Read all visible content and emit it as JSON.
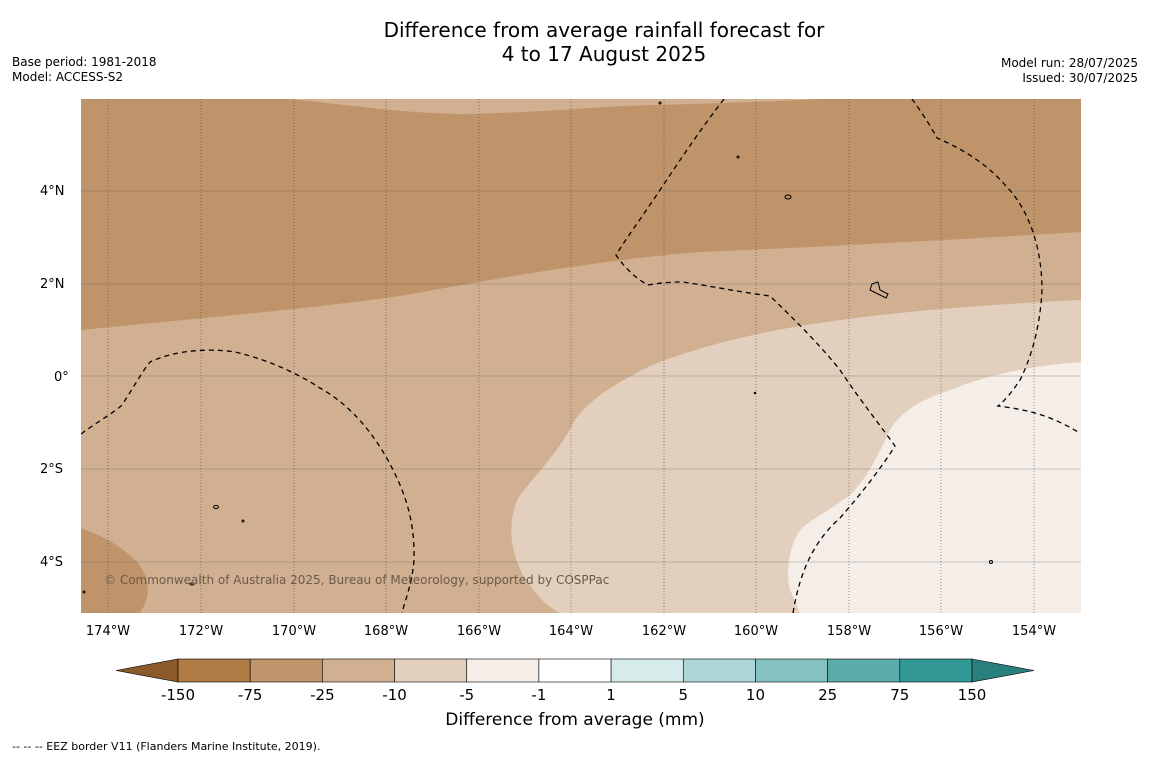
{
  "title_line1": "Difference from average rainfall forecast for",
  "title_line2": "4 to 17 August 2025",
  "meta_left": {
    "base_period": "Base period: 1981-2018",
    "model": "Model: ACCESS-S2"
  },
  "meta_right": {
    "model_run": "Model run: 28/07/2025",
    "issued": "Issued: 30/07/2025"
  },
  "map": {
    "lat_labels": [
      "4°N",
      "2°N",
      "0°",
      "2°S",
      "4°S"
    ],
    "lon_labels": [
      "174°W",
      "172°W",
      "170°W",
      "168°W",
      "166°W",
      "164°W",
      "162°W",
      "160°W",
      "158°W",
      "156°W",
      "154°W"
    ],
    "copyright": "© Commonwealth of Australia 2025, Bureau of Meteorology, supported by COSPPac"
  },
  "colorbar": {
    "title": "Difference from average (mm)",
    "labels": [
      "-150",
      "-75",
      "-25",
      "-10",
      "-5",
      "-1",
      "1",
      "5",
      "10",
      "25",
      "75",
      "150"
    ],
    "colors": [
      "#8b5a2b",
      "#b07a45",
      "#c0946a",
      "#d1b092",
      "#e2cfbd",
      "#f4ede8",
      "#ffffff",
      "#d6ecea",
      "#abd6d5",
      "#83c2c0",
      "#5bacab",
      "#349896",
      "#2a7f7d"
    ]
  },
  "footnote": "--  --  -- EEZ border V11 (Flanders Marine Institute, 2019)."
}
